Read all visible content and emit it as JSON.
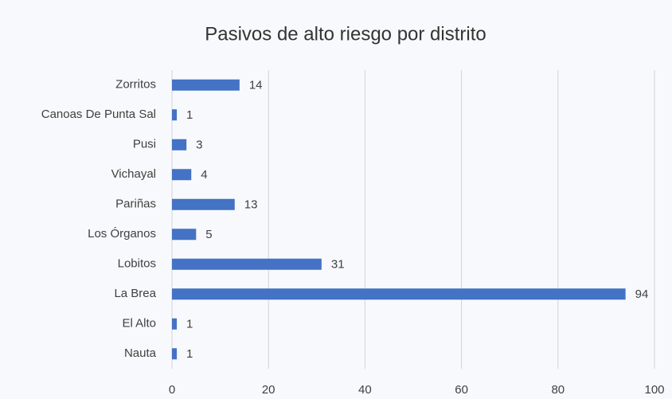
{
  "chart_data": {
    "type": "bar",
    "orientation": "horizontal",
    "title": "Pasivos de alto riesgo por distrito",
    "categories": [
      "Zorritos",
      "Canoas De Punta Sal",
      "Pusi",
      "Vichayal",
      "Pariñas",
      "Los Órganos",
      "Lobitos",
      "La Brea",
      "El Alto",
      "Nauta"
    ],
    "values": [
      14,
      1,
      3,
      4,
      13,
      5,
      31,
      94,
      1,
      1
    ],
    "color": "#4472c4",
    "xlim": [
      0,
      100
    ],
    "xticks": [
      0,
      20,
      40,
      60,
      80,
      100
    ],
    "grid": true
  }
}
